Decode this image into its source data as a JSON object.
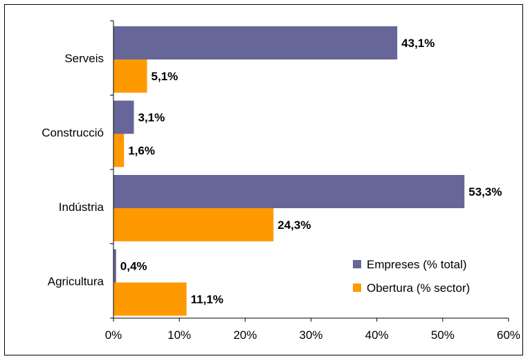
{
  "chart_data": {
    "type": "bar",
    "orientation": "horizontal",
    "categories": [
      "Serveis",
      "Construcció",
      "Indústria",
      "Agricultura"
    ],
    "series": [
      {
        "name": "Empreses (% total)",
        "color": "#666699",
        "values": [
          43.1,
          3.1,
          53.3,
          0.4
        ],
        "labels": [
          "43,1%",
          "3,1%",
          "53,3%",
          "0,4%"
        ]
      },
      {
        "name": "Obertura (% sector)",
        "color": "#FF9900",
        "values": [
          5.1,
          1.6,
          24.3,
          11.1
        ],
        "labels": [
          "5,1%",
          "1,6%",
          "24,3%",
          "11,1%"
        ]
      }
    ],
    "xlim": [
      0,
      60
    ],
    "xticks": [
      0,
      10,
      20,
      30,
      40,
      50,
      60
    ],
    "xtick_labels": [
      "0%",
      "10%",
      "20%",
      "30%",
      "40%",
      "50%",
      "60%"
    ],
    "grid": false,
    "legend_position": "bottom-right",
    "title": "",
    "xlabel": "",
    "ylabel": ""
  }
}
